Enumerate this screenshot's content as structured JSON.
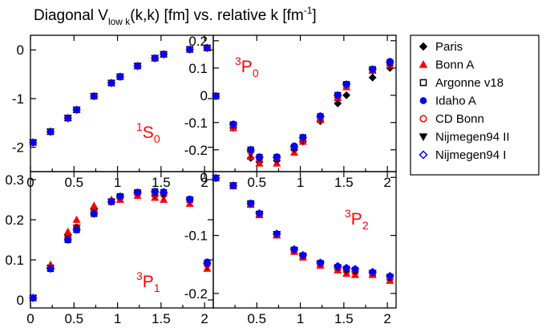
{
  "title": {
    "main": "Diagonal V",
    "sub": "low k",
    "tail": "(k,k) [fm] vs. relative k [fm",
    "exp": "-1",
    "close": "]"
  },
  "legend": [
    {
      "label": "Paris",
      "marker": "diamond-filled",
      "color": "#000000"
    },
    {
      "label": "Bonn A",
      "marker": "triangle-up-filled",
      "color": "#ff0000"
    },
    {
      "label": "Argonne v18",
      "marker": "square-open",
      "color": "#000000"
    },
    {
      "label": "Idaho A",
      "marker": "circle-filled",
      "color": "#0000ff"
    },
    {
      "label": "CD Bonn",
      "marker": "circle-open",
      "color": "#ff0000"
    },
    {
      "label": "Nijmegen94 II",
      "marker": "triangle-down-filled",
      "color": "#000000"
    },
    {
      "label": "Nijmegen94 I",
      "marker": "diamond-open",
      "color": "#0000ff"
    }
  ],
  "chart_data": [
    {
      "type": "scatter",
      "panel": "1S0",
      "wave": {
        "sup": "1",
        "letter": "S",
        "sub": "0"
      },
      "xlim": [
        0,
        2.1
      ],
      "ylim": [
        -2.5,
        0.3
      ],
      "xticks": [
        0,
        0.5,
        1,
        1.5,
        2
      ],
      "xticklabels": [
        "0",
        "0.5",
        "1",
        "1.5",
        "2"
      ],
      "yticks": [
        0,
        -1,
        -2
      ],
      "yticklabels": [
        "0",
        "-1",
        "-2"
      ],
      "x": [
        0.03,
        0.23,
        0.43,
        0.53,
        0.73,
        0.93,
        1.03,
        1.23,
        1.43,
        1.53,
        1.83,
        2.03
      ],
      "series": [
        {
          "name": "Paris",
          "values": [
            -1.9,
            -1.68,
            -1.4,
            -1.23,
            -0.95,
            -0.68,
            -0.55,
            -0.33,
            -0.17,
            -0.09,
            0.01,
            0.04
          ]
        },
        {
          "name": "Bonn A",
          "values": [
            -1.9,
            -1.68,
            -1.4,
            -1.23,
            -0.95,
            -0.68,
            -0.55,
            -0.33,
            -0.17,
            -0.09,
            0.01,
            0.04
          ]
        },
        {
          "name": "Argonne v18",
          "values": [
            -1.9,
            -1.68,
            -1.4,
            -1.23,
            -0.95,
            -0.68,
            -0.55,
            -0.33,
            -0.17,
            -0.09,
            0.01,
            0.04
          ]
        },
        {
          "name": "Idaho A",
          "values": [
            -1.9,
            -1.68,
            -1.4,
            -1.23,
            -0.95,
            -0.68,
            -0.55,
            -0.33,
            -0.17,
            -0.09,
            0.01,
            0.04
          ]
        },
        {
          "name": "CD Bonn",
          "values": [
            -1.9,
            -1.68,
            -1.4,
            -1.23,
            -0.95,
            -0.68,
            -0.55,
            -0.33,
            -0.17,
            -0.09,
            0.01,
            0.04
          ]
        },
        {
          "name": "Nijmegen94 II",
          "values": [
            -1.9,
            -1.68,
            -1.4,
            -1.23,
            -0.95,
            -0.68,
            -0.55,
            -0.33,
            -0.17,
            -0.09,
            0.01,
            0.04
          ]
        },
        {
          "name": "Nijmegen94 I",
          "values": [
            -1.9,
            -1.68,
            -1.4,
            -1.23,
            -0.95,
            -0.68,
            -0.55,
            -0.33,
            -0.17,
            -0.09,
            0.01,
            0.04
          ]
        }
      ]
    },
    {
      "type": "scatter",
      "panel": "3P0",
      "wave": {
        "sup": "3",
        "letter": "P",
        "sub": "0"
      },
      "xlim": [
        0,
        2.1
      ],
      "ylim": [
        -0.28,
        0.22
      ],
      "xticks": [
        0.5,
        1,
        1.5,
        2
      ],
      "xticklabels": [
        "0.5",
        "1",
        "1.5",
        "2"
      ],
      "yticks": [
        0.2,
        0.1,
        0,
        -0.1,
        -0.2
      ],
      "yticklabels": [
        "0.2",
        "0.1",
        "0",
        "-0.1",
        "-0.2"
      ],
      "x": [
        0.03,
        0.23,
        0.43,
        0.53,
        0.73,
        0.93,
        1.03,
        1.23,
        1.43,
        1.53,
        1.83,
        2.03
      ],
      "series": [
        {
          "name": "Paris",
          "values": [
            -0.003,
            -0.12,
            -0.23,
            -0.245,
            -0.24,
            -0.2,
            -0.17,
            -0.095,
            -0.03,
            0.0,
            0.065,
            0.1
          ]
        },
        {
          "name": "Bonn A",
          "values": [
            -0.003,
            -0.12,
            -0.225,
            -0.25,
            -0.25,
            -0.21,
            -0.17,
            -0.09,
            -0.01,
            0.03,
            0.09,
            0.11
          ]
        },
        {
          "name": "Argonne v18",
          "values": [
            -0.003,
            -0.108,
            -0.2,
            -0.228,
            -0.228,
            -0.19,
            -0.155,
            -0.078,
            0.0,
            0.04,
            0.095,
            0.12
          ]
        },
        {
          "name": "Idaho A",
          "values": [
            -0.003,
            -0.105,
            -0.2,
            -0.225,
            -0.225,
            -0.185,
            -0.155,
            -0.075,
            0.0,
            0.04,
            0.095,
            0.125
          ]
        },
        {
          "name": "CD Bonn",
          "values": [
            -0.003,
            -0.11,
            -0.205,
            -0.235,
            -0.23,
            -0.19,
            -0.16,
            -0.08,
            -0.005,
            0.035,
            0.092,
            0.12
          ]
        },
        {
          "name": "Nijmegen94 II",
          "values": [
            -0.003,
            -0.11,
            -0.215,
            -0.235,
            -0.235,
            -0.195,
            -0.165,
            -0.085,
            -0.01,
            0.035,
            0.09,
            0.115
          ]
        },
        {
          "name": "Nijmegen94 I",
          "values": [
            -0.003,
            -0.108,
            -0.2,
            -0.228,
            -0.228,
            -0.19,
            -0.155,
            -0.078,
            0.0,
            0.04,
            0.095,
            0.12
          ]
        }
      ]
    },
    {
      "type": "scatter",
      "panel": "3P1",
      "wave": {
        "sup": "3",
        "letter": "P",
        "sub": "1"
      },
      "xlim": [
        0,
        2.1
      ],
      "ylim": [
        -0.02,
        0.32
      ],
      "xticks": [
        0,
        0.5,
        1,
        1.5,
        2
      ],
      "xticklabels": [
        "0",
        "0.5",
        "1",
        "1.5",
        "2"
      ],
      "yticks": [
        0.3,
        0.2,
        0.1,
        0
      ],
      "yticklabels": [
        "0.3",
        "0.2",
        "0.1",
        "0"
      ],
      "x": [
        0.03,
        0.23,
        0.43,
        0.53,
        0.73,
        0.93,
        1.03,
        1.23,
        1.43,
        1.53,
        1.83,
        2.03
      ],
      "series": [
        {
          "name": "Paris",
          "values": [
            0.005,
            0.08,
            0.155,
            0.18,
            0.22,
            0.245,
            0.255,
            0.265,
            0.26,
            0.262,
            0.25,
            0.09
          ]
        },
        {
          "name": "Bonn A",
          "values": [
            0.005,
            0.088,
            0.17,
            0.2,
            0.235,
            0.25,
            0.25,
            0.26,
            0.255,
            0.25,
            0.24,
            0.078
          ]
        },
        {
          "name": "Argonne v18",
          "values": [
            0.005,
            0.078,
            0.15,
            0.175,
            0.215,
            0.245,
            0.258,
            0.268,
            0.27,
            0.268,
            0.25,
            0.092
          ]
        },
        {
          "name": "Idaho A",
          "values": [
            0.005,
            0.078,
            0.15,
            0.175,
            0.215,
            0.245,
            0.258,
            0.268,
            0.27,
            0.27,
            0.252,
            0.095
          ]
        },
        {
          "name": "CD Bonn",
          "values": [
            0.005,
            0.08,
            0.155,
            0.182,
            0.22,
            0.245,
            0.255,
            0.265,
            0.265,
            0.262,
            0.248,
            0.088
          ]
        },
        {
          "name": "Nijmegen94 II",
          "values": [
            0.005,
            0.08,
            0.155,
            0.18,
            0.22,
            0.245,
            0.255,
            0.265,
            0.262,
            0.26,
            0.248,
            0.085
          ]
        },
        {
          "name": "Nijmegen94 I",
          "values": [
            0.005,
            0.078,
            0.15,
            0.175,
            0.215,
            0.245,
            0.258,
            0.268,
            0.27,
            0.268,
            0.25,
            0.092
          ]
        }
      ]
    },
    {
      "type": "scatter",
      "panel": "3P2",
      "wave": {
        "sup": "3",
        "letter": "P",
        "sub": "2"
      },
      "xlim": [
        0,
        2.1
      ],
      "ylim": [
        -0.225,
        0.01
      ],
      "xticks": [
        0.5,
        1,
        1.5,
        2
      ],
      "xticklabels": [
        "0.5",
        "1",
        "1.5",
        "2"
      ],
      "yticks": [
        0,
        -0.1,
        -0.2
      ],
      "yticklabels": [
        "0",
        "-0.1",
        "-0.2"
      ],
      "x": [
        0.03,
        0.23,
        0.43,
        0.53,
        0.73,
        0.93,
        1.03,
        1.23,
        1.43,
        1.53,
        1.63,
        1.83,
        2.03
      ],
      "series": [
        {
          "name": "Paris",
          "values": [
            -0.001,
            -0.014,
            -0.045,
            -0.062,
            -0.098,
            -0.125,
            -0.135,
            -0.148,
            -0.155,
            -0.16,
            -0.162,
            -0.165,
            -0.17
          ]
        },
        {
          "name": "Bonn A",
          "values": [
            -0.001,
            -0.015,
            -0.047,
            -0.065,
            -0.1,
            -0.128,
            -0.138,
            -0.152,
            -0.16,
            -0.166,
            -0.168,
            -0.168,
            -0.178
          ]
        },
        {
          "name": "Argonne v18",
          "values": [
            -0.001,
            -0.014,
            -0.045,
            -0.063,
            -0.098,
            -0.125,
            -0.135,
            -0.148,
            -0.155,
            -0.158,
            -0.16,
            -0.165,
            -0.172
          ]
        },
        {
          "name": "Idaho A",
          "values": [
            -0.001,
            -0.014,
            -0.045,
            -0.062,
            -0.097,
            -0.124,
            -0.134,
            -0.147,
            -0.153,
            -0.156,
            -0.158,
            -0.163,
            -0.17
          ]
        },
        {
          "name": "CD Bonn",
          "values": [
            -0.001,
            -0.014,
            -0.046,
            -0.064,
            -0.099,
            -0.127,
            -0.137,
            -0.15,
            -0.157,
            -0.162,
            -0.164,
            -0.166,
            -0.175
          ]
        },
        {
          "name": "Nijmegen94 II",
          "values": [
            -0.001,
            -0.014,
            -0.046,
            -0.063,
            -0.098,
            -0.126,
            -0.136,
            -0.149,
            -0.156,
            -0.16,
            -0.162,
            -0.165,
            -0.172
          ]
        },
        {
          "name": "Nijmegen94 I",
          "values": [
            -0.001,
            -0.014,
            -0.045,
            -0.062,
            -0.097,
            -0.124,
            -0.134,
            -0.147,
            -0.153,
            -0.156,
            -0.158,
            -0.163,
            -0.17
          ]
        }
      ]
    }
  ]
}
